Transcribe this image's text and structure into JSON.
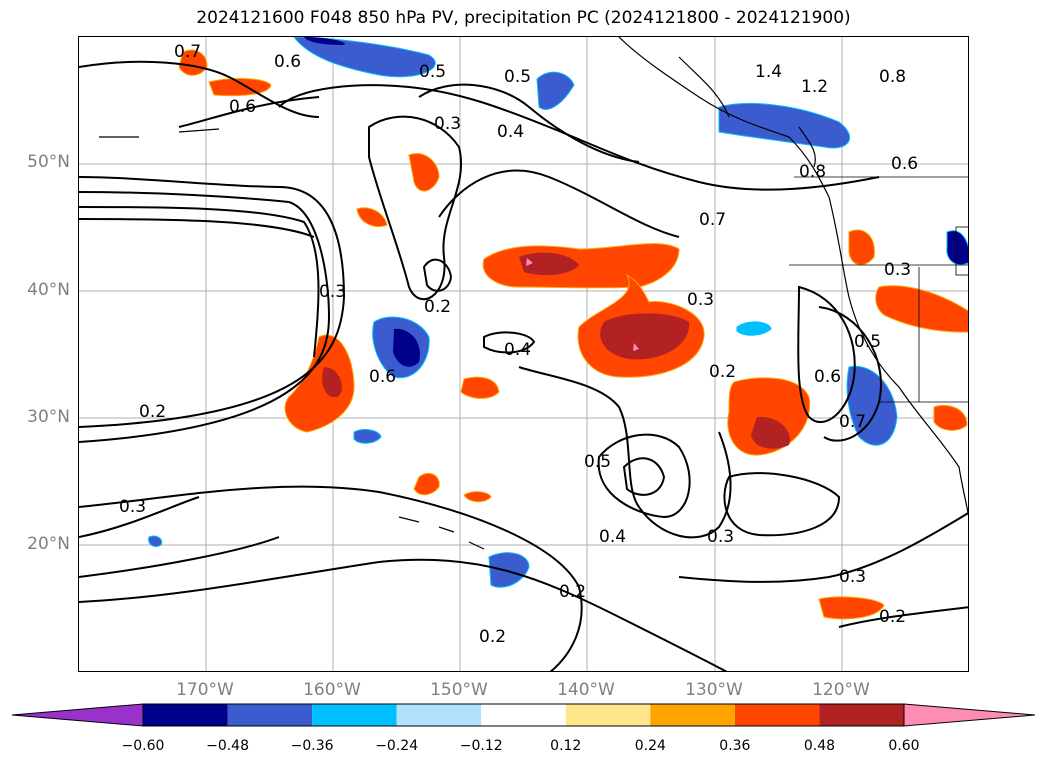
{
  "title": "2024121600 F048 850 hPa PV, precipitation PC (2024121800 - 2024121900)",
  "lat_labels": [
    {
      "text": "50°N",
      "lat": 50
    },
    {
      "text": "40°N",
      "lat": 40
    },
    {
      "text": "30°N",
      "lat": 30
    },
    {
      "text": "20°N",
      "lat": 20
    }
  ],
  "lon_labels": [
    {
      "text": "170°W",
      "lon": -170
    },
    {
      "text": "160°W",
      "lon": -160
    },
    {
      "text": "150°W",
      "lon": -150
    },
    {
      "text": "140°W",
      "lon": -140
    },
    {
      "text": "130°W",
      "lon": -130
    },
    {
      "text": "120°W",
      "lon": -120
    }
  ],
  "map_extent": {
    "lon_min": -180,
    "lon_max": -110,
    "lat_min": 10,
    "lat_max": 60
  },
  "contour_labels": [
    "0.7",
    "0.6",
    "0.6",
    "0.5",
    "0.5",
    "0.3",
    "0.4",
    "1.4",
    "1.2",
    "0.8",
    "0.6",
    "0.8",
    "0.7",
    "0.3",
    "0.3",
    "0.2",
    "0.3",
    "0.4",
    "0.6",
    "0.2",
    "0.2",
    "0.6",
    "0.5",
    "0.7",
    "0.5",
    "0.4",
    "0.3",
    "0.3",
    "0.2",
    "0.3",
    "0.2",
    "0.2"
  ],
  "colorbar": {
    "colors": [
      "#9932cc",
      "#00008b",
      "#3a5ccf",
      "#00bfff",
      "#b0e2ff",
      "#ffffff",
      "#ffe68c",
      "#ffa500",
      "#ff4500",
      "#b22222",
      "#ff8cb4",
      "#ff8cb4"
    ],
    "ticks": [
      "−0.60",
      "−0.48",
      "−0.36",
      "−0.24",
      "−0.12",
      "0.12",
      "0.24",
      "0.36",
      "0.48",
      "0.60"
    ]
  }
}
